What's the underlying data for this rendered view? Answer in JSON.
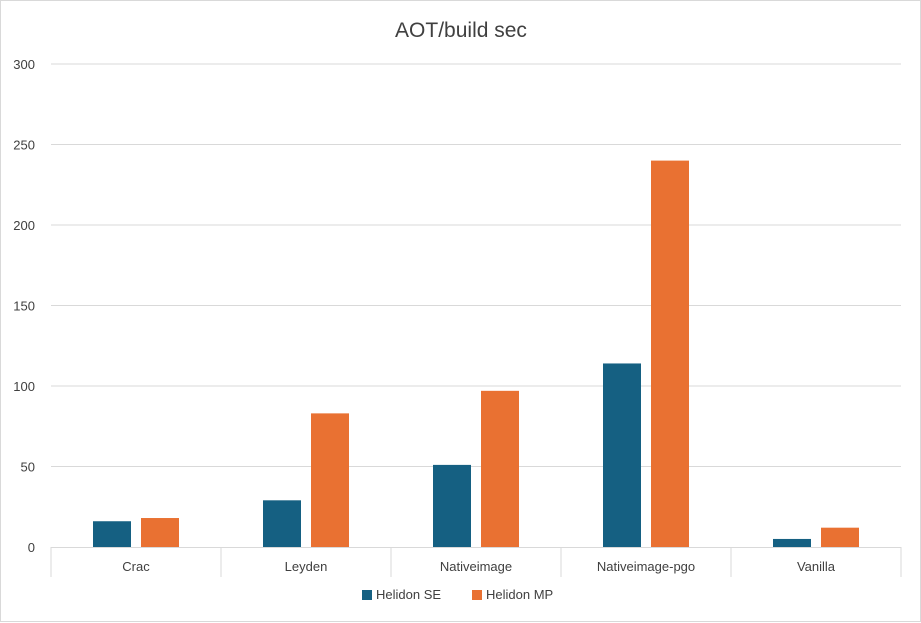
{
  "chart_data": {
    "type": "bar",
    "title": "AOT/build sec",
    "xlabel": "",
    "ylabel": "",
    "categories": [
      "Crac",
      "Leyden",
      "Nativeimage",
      "Nativeimage-pgo",
      "Vanilla"
    ],
    "series": [
      {
        "name": "Helidon SE",
        "color": "#156082",
        "values": [
          16,
          29,
          51,
          114,
          5
        ]
      },
      {
        "name": "Helidon MP",
        "color": "#E97132",
        "values": [
          18,
          83,
          97,
          240,
          12
        ]
      }
    ],
    "ylim": [
      0,
      300
    ],
    "yticks": [
      "0",
      "50",
      "100",
      "150",
      "200",
      "250",
      "300"
    ],
    "grid": true,
    "legend_position": "bottom"
  }
}
